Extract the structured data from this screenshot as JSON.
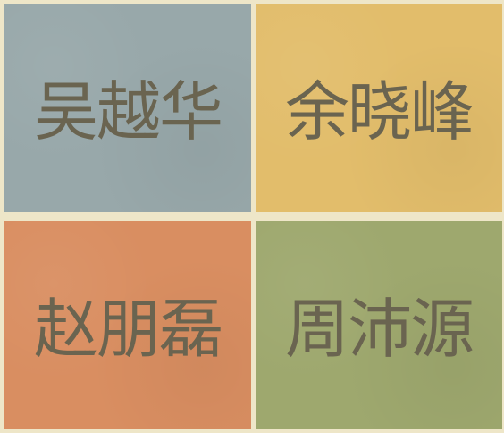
{
  "tiles": [
    {
      "name": "吴越华",
      "color": "#98a8aa"
    },
    {
      "name": "余晓峰",
      "color": "#e2bd6b"
    },
    {
      "name": "赵朋磊",
      "color": "#d98e61"
    },
    {
      "name": "周沛源",
      "color": "#9ea86e"
    }
  ]
}
